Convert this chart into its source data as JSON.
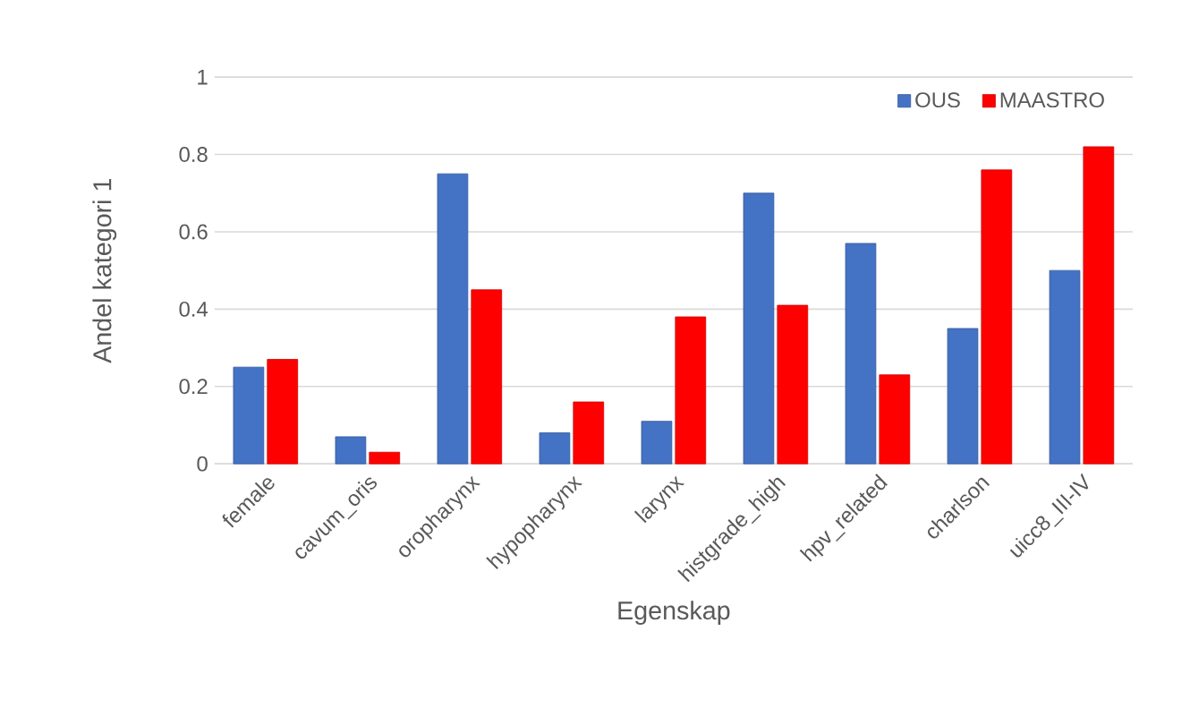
{
  "chart_data": {
    "type": "bar",
    "xlabel": "Egenskap",
    "ylabel": "Andel kategori 1",
    "categories": [
      "female",
      "cavum_oris",
      "oropharynx",
      "hypopharynx",
      "larynx",
      "histgrade_high",
      "hpv_related",
      "charlson",
      "uicc8_III-IV"
    ],
    "series": [
      {
        "name": "OUS",
        "color": "#4472c4",
        "values": [
          0.25,
          0.07,
          0.75,
          0.08,
          0.11,
          0.7,
          0.57,
          0.35,
          0.5
        ]
      },
      {
        "name": "MAASTRO",
        "color": "#ff0000",
        "values": [
          0.27,
          0.03,
          0.45,
          0.16,
          0.38,
          0.41,
          0.23,
          0.76,
          0.82
        ]
      }
    ],
    "ylim": [
      0,
      1
    ],
    "yticks": [
      0,
      0.2,
      0.4,
      0.6,
      0.8,
      1
    ],
    "grid": "y",
    "legend": "top right"
  }
}
